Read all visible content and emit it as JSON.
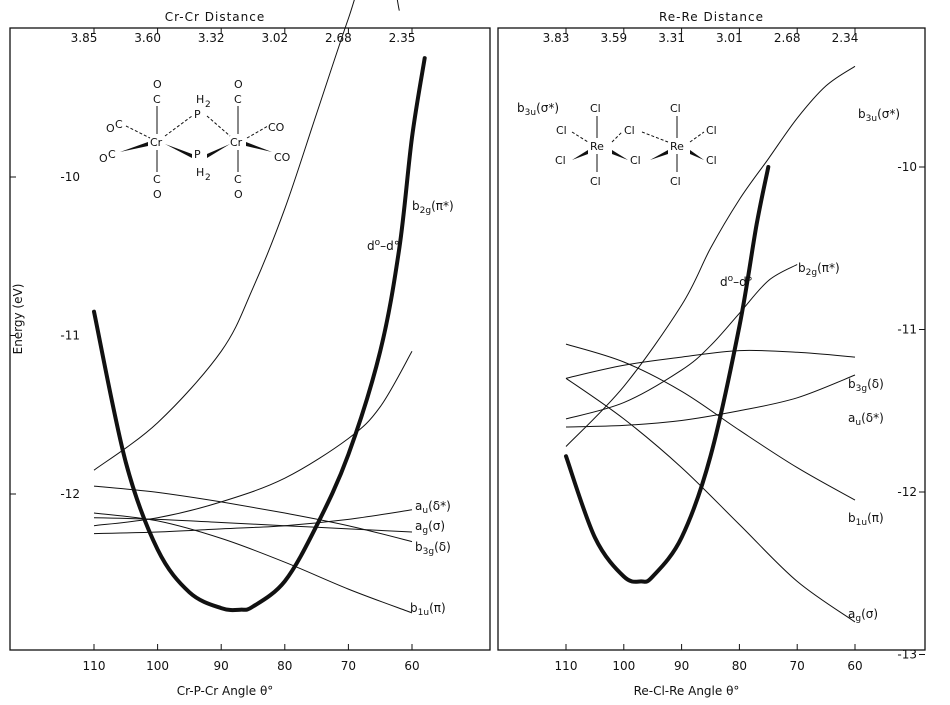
{
  "chart_data": [
    {
      "type": "line",
      "panel": "left",
      "top_axis_title": "Cr-Cr  Distance",
      "top_ticks": [
        "3.85",
        "3.60",
        "3.32",
        "3.02",
        "2.68",
        "2.35"
      ],
      "top_tick_angles": [
        110,
        100,
        90,
        80,
        70,
        60
      ],
      "xlabel": "Cr-P-Cr  Angle  θ°",
      "ylabel": "Energy (eV)",
      "x_ticks": [
        110,
        100,
        90,
        80,
        70,
        60
      ],
      "y_ticks": [
        -10,
        -11,
        -12
      ],
      "ylim": [
        -12.85,
        -8.7
      ],
      "xlim": [
        113,
        50
      ],
      "series": [
        {
          "label_main": "b",
          "label_sub": "3u",
          "label_tail": "(σ*)",
          "bold": false,
          "x": [
            110,
            100,
            90,
            85,
            80,
            75,
            70,
            65,
            62
          ],
          "y": [
            -11.85,
            -11.55,
            -11.1,
            -10.7,
            -10.2,
            -9.6,
            -9.0,
            -8.45,
            -8.95
          ]
        },
        {
          "label_main": "d",
          "label_sub": "o",
          "label_tail": "–d°",
          "bold": true,
          "x": [
            110,
            105,
            100,
            95,
            90,
            87,
            85,
            80,
            75,
            70,
            65,
            62,
            60,
            58
          ],
          "y": [
            -10.85,
            -11.8,
            -12.35,
            -12.62,
            -12.72,
            -12.73,
            -12.71,
            -12.55,
            -12.2,
            -11.75,
            -11.1,
            -10.45,
            -9.75,
            -9.25
          ]
        },
        {
          "label_main": "b",
          "label_sub": "2g",
          "label_tail": "(π*)",
          "bold": false,
          "x": [
            110,
            100,
            90,
            80,
            70,
            65,
            60
          ],
          "y": [
            -12.2,
            -12.15,
            -12.05,
            -11.9,
            -11.65,
            -11.45,
            -11.1
          ]
        },
        {
          "label_main": "a",
          "label_sub": "u",
          "label_tail": "(δ*)",
          "bold": false,
          "x": [
            110,
            100,
            90,
            80,
            70,
            60
          ],
          "y": [
            -12.25,
            -12.24,
            -12.22,
            -12.2,
            -12.16,
            -12.1
          ]
        },
        {
          "label_main": "a",
          "label_sub": "g",
          "label_tail": "(σ)",
          "bold": false,
          "x": [
            110,
            100,
            90,
            80,
            70,
            60
          ],
          "y": [
            -12.15,
            -12.16,
            -12.18,
            -12.2,
            -12.22,
            -12.24
          ]
        },
        {
          "label_main": "b",
          "label_sub": "3g",
          "label_tail": "(δ)",
          "bold": false,
          "x": [
            110,
            100,
            90,
            80,
            70,
            60
          ],
          "y": [
            -11.95,
            -11.99,
            -12.05,
            -12.12,
            -12.2,
            -12.3
          ]
        },
        {
          "label_main": "b",
          "label_sub": "1u",
          "label_tail": "(π)",
          "bold": false,
          "x": [
            110,
            100,
            90,
            80,
            70,
            60
          ],
          "y": [
            -12.12,
            -12.17,
            -12.28,
            -12.43,
            -12.6,
            -12.75
          ]
        }
      ],
      "molecule": {
        "metal": "Cr",
        "bridge": "P",
        "bridge_h": "H",
        "bridge_h_sub": "2",
        "ligand": "CO",
        "c": "C",
        "o": "O"
      }
    },
    {
      "type": "line",
      "panel": "right",
      "top_axis_title": "Re-Re  Distance",
      "top_ticks": [
        "3.83",
        "3.59",
        "3.31",
        "3.01",
        "2.68",
        "2.34"
      ],
      "top_tick_angles": [
        110,
        100,
        90,
        80,
        70,
        60
      ],
      "xlabel": "Re-Cl-Re  Angle  θ°",
      "ylabel": "",
      "x_ticks": [
        110,
        100,
        90,
        80,
        70,
        60
      ],
      "y_ticks": [
        -10,
        -11,
        -12,
        -13
      ],
      "ylim": [
        -13.0,
        -9.15
      ],
      "xlim": [
        113,
        50
      ],
      "series": [
        {
          "label_main": "b",
          "label_sub": "3u",
          "label_tail": "(σ*)",
          "bold": false,
          "x": [
            110,
            100,
            90,
            85,
            80,
            75,
            70,
            65,
            60
          ],
          "y": [
            -11.72,
            -11.35,
            -10.85,
            -10.5,
            -10.2,
            -9.95,
            -9.7,
            -9.5,
            -9.38
          ]
        },
        {
          "label_main": "d",
          "label_sub": "o",
          "label_tail": "–d°",
          "bold": true,
          "x": [
            110,
            105,
            100,
            97,
            95,
            90,
            85,
            80,
            77,
            75
          ],
          "y": [
            -11.78,
            -12.28,
            -12.52,
            -12.55,
            -12.52,
            -12.28,
            -11.78,
            -10.98,
            -10.35,
            -10.0
          ]
        },
        {
          "label_main": "b",
          "label_sub": "2g",
          "label_tail": "(π*)",
          "bold": false,
          "x": [
            110,
            100,
            90,
            85,
            80,
            75,
            70
          ],
          "y": [
            -11.55,
            -11.45,
            -11.25,
            -11.1,
            -10.9,
            -10.7,
            -10.6
          ]
        },
        {
          "label_main": "b",
          "label_sub": "3g",
          "label_tail": "(δ)",
          "bold": false,
          "x": [
            110,
            100,
            90,
            80,
            70,
            60
          ],
          "y": [
            -11.3,
            -11.22,
            -11.17,
            -11.13,
            -11.14,
            -11.17
          ]
        },
        {
          "label_main": "a",
          "label_sub": "u",
          "label_tail": "(δ*)",
          "bold": false,
          "x": [
            110,
            100,
            90,
            80,
            70,
            60
          ],
          "y": [
            -11.6,
            -11.59,
            -11.56,
            -11.5,
            -11.42,
            -11.28
          ]
        },
        {
          "label_main": "b",
          "label_sub": "1u",
          "label_tail": "(π)",
          "bold": false,
          "x": [
            110,
            100,
            90,
            80,
            70,
            60
          ],
          "y": [
            -11.09,
            -11.2,
            -11.38,
            -11.62,
            -11.85,
            -12.05
          ]
        },
        {
          "label_main": "a",
          "label_sub": "g",
          "label_tail": "(σ)",
          "bold": false,
          "x": [
            110,
            100,
            90,
            80,
            70,
            60
          ],
          "y": [
            -11.3,
            -11.55,
            -11.85,
            -12.2,
            -12.55,
            -12.8
          ]
        }
      ],
      "molecule": {
        "metal": "Re",
        "bridge": "Cl",
        "ligand": "Cl"
      }
    }
  ]
}
